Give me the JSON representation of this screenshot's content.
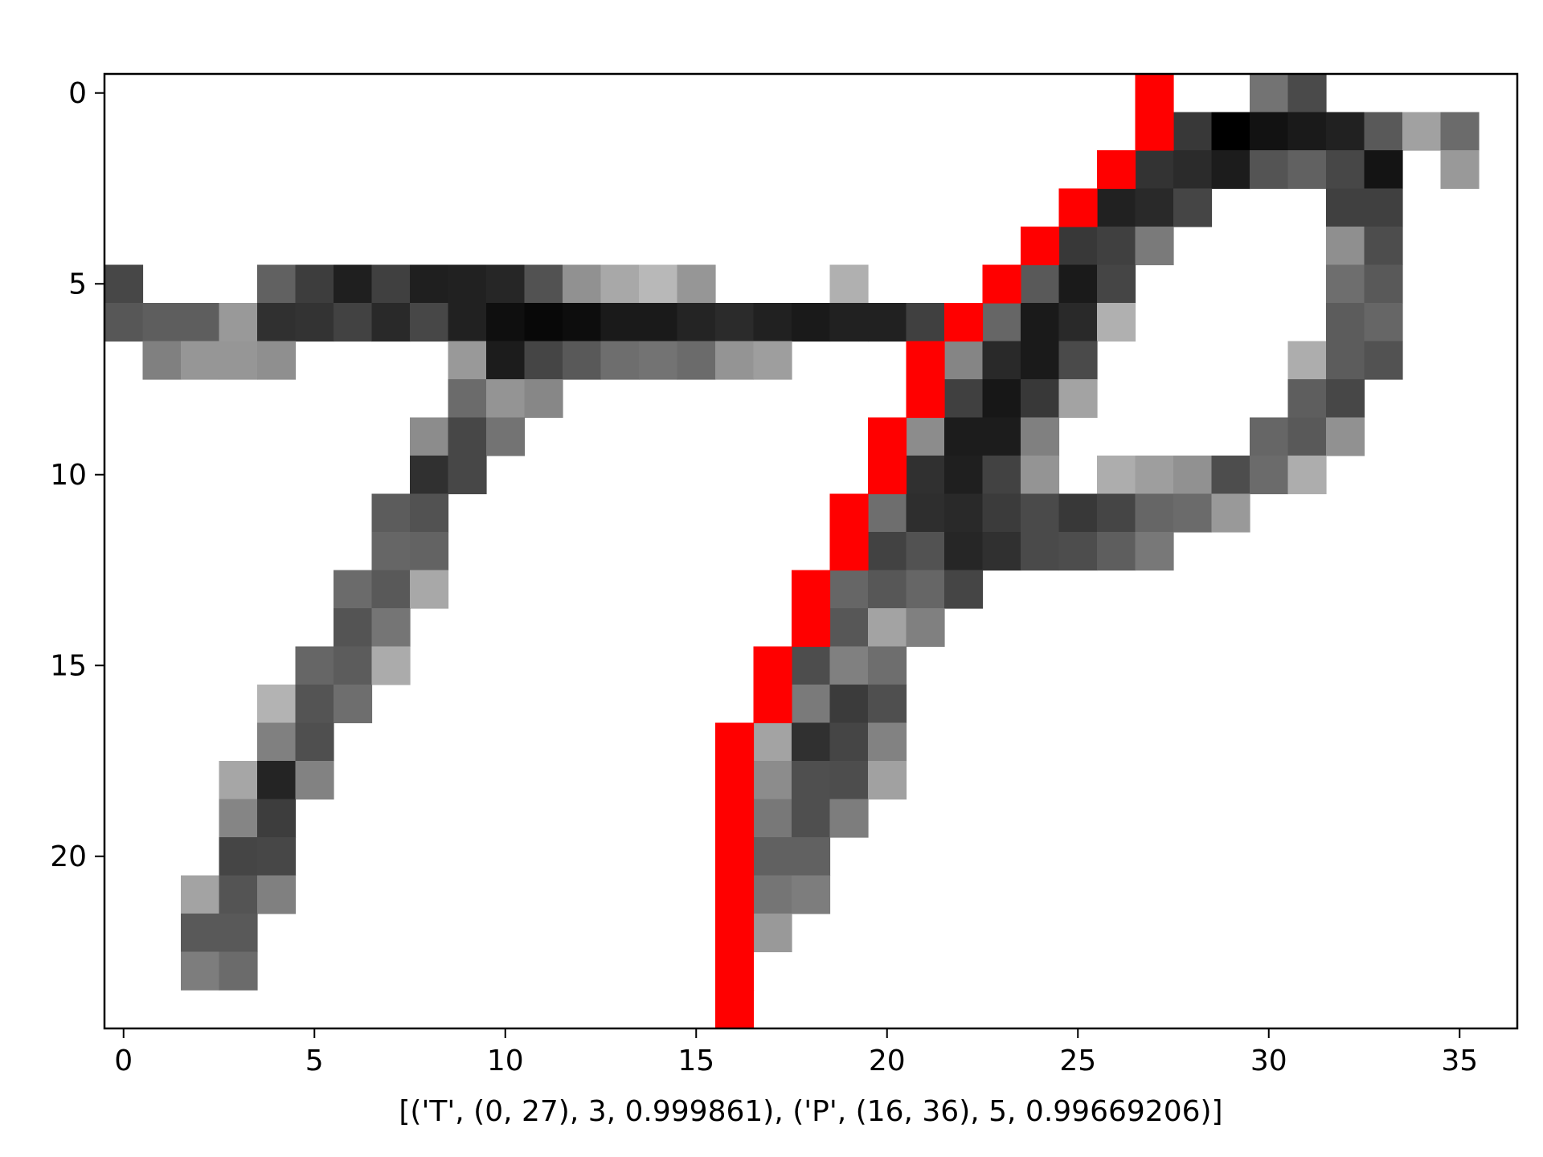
{
  "chart_data": {
    "type": "heatmap",
    "colormap": "gray",
    "highlight_color": "#ff0000",
    "xlabel": "[('T', (0, 27), 3, 0.999861), ('P', (16, 36), 5, 0.99669206)]",
    "xlim": [
      -0.5,
      36.5
    ],
    "ylim": [
      24.5,
      -0.5
    ],
    "x_ticks": [
      "0",
      "5",
      "10",
      "15",
      "20",
      "25",
      "30",
      "35"
    ],
    "y_ticks": [
      "0",
      "5",
      "10",
      "15",
      "20"
    ],
    "x_tick_values": [
      0,
      5,
      10,
      15,
      20,
      25,
      30,
      35
    ],
    "y_tick_values": [
      0,
      5,
      10,
      15,
      20
    ],
    "grid": false,
    "highlight_path": [
      [
        27,
        0
      ],
      [
        27,
        1
      ],
      [
        26,
        2
      ],
      [
        25,
        3
      ],
      [
        24,
        4
      ],
      [
        23,
        5
      ],
      [
        22,
        6
      ],
      [
        21,
        7
      ],
      [
        21,
        8
      ],
      [
        20,
        9
      ],
      [
        20,
        10
      ],
      [
        19,
        11
      ],
      [
        19,
        12
      ],
      [
        18,
        13
      ],
      [
        18,
        14
      ],
      [
        17,
        15
      ],
      [
        17,
        16
      ],
      [
        16,
        17
      ],
      [
        16,
        18
      ],
      [
        16,
        19
      ],
      [
        16,
        20
      ],
      [
        16,
        21
      ],
      [
        16,
        22
      ],
      [
        16,
        23
      ],
      [
        16,
        24
      ]
    ],
    "pixels": [
      {
        "row": 0,
        "cells": [
          [
            30,
            0.45
          ],
          [
            31,
            0.29
          ]
        ]
      },
      {
        "row": 1,
        "cells": [
          [
            28,
            0.22
          ],
          [
            29,
            0.0
          ],
          [
            30,
            0.07
          ],
          [
            31,
            0.1
          ],
          [
            32,
            0.13
          ],
          [
            33,
            0.35
          ],
          [
            34,
            0.63
          ],
          [
            35,
            0.42
          ]
        ]
      },
      {
        "row": 2,
        "cells": [
          [
            27,
            0.2
          ],
          [
            28,
            0.17
          ],
          [
            29,
            0.11
          ],
          [
            30,
            0.33
          ],
          [
            31,
            0.38
          ],
          [
            32,
            0.28
          ],
          [
            33,
            0.08
          ],
          [
            35,
            0.6
          ]
        ]
      },
      {
        "row": 3,
        "cells": [
          [
            26,
            0.13
          ],
          [
            27,
            0.16
          ],
          [
            28,
            0.27
          ],
          [
            32,
            0.25
          ],
          [
            33,
            0.25
          ]
        ]
      },
      {
        "row": 4,
        "cells": [
          [
            25,
            0.22
          ],
          [
            26,
            0.25
          ],
          [
            27,
            0.48
          ],
          [
            32,
            0.56
          ],
          [
            33,
            0.3
          ]
        ]
      },
      {
        "row": 5,
        "cells": [
          [
            0,
            0.28
          ],
          [
            4,
            0.38
          ],
          [
            5,
            0.24
          ],
          [
            6,
            0.12
          ],
          [
            7,
            0.25
          ],
          [
            8,
            0.12
          ],
          [
            9,
            0.13
          ],
          [
            10,
            0.15
          ],
          [
            11,
            0.32
          ],
          [
            12,
            0.57
          ],
          [
            13,
            0.66
          ],
          [
            14,
            0.72
          ],
          [
            15,
            0.59
          ],
          [
            19,
            0.69
          ],
          [
            24,
            0.35
          ],
          [
            25,
            0.1
          ],
          [
            26,
            0.27
          ],
          [
            32,
            0.43
          ],
          [
            33,
            0.35
          ]
        ]
      },
      {
        "row": 6,
        "cells": [
          [
            0,
            0.34
          ],
          [
            1,
            0.37
          ],
          [
            2,
            0.37
          ],
          [
            3,
            0.6
          ],
          [
            4,
            0.19
          ],
          [
            5,
            0.2
          ],
          [
            6,
            0.26
          ],
          [
            7,
            0.16
          ],
          [
            8,
            0.28
          ],
          [
            9,
            0.13
          ],
          [
            10,
            0.06
          ],
          [
            11,
            0.03
          ],
          [
            12,
            0.05
          ],
          [
            13,
            0.1
          ],
          [
            14,
            0.1
          ],
          [
            15,
            0.14
          ],
          [
            16,
            0.17
          ],
          [
            17,
            0.13
          ],
          [
            18,
            0.1
          ],
          [
            19,
            0.13
          ],
          [
            20,
            0.13
          ],
          [
            21,
            0.25
          ],
          [
            23,
            0.4
          ],
          [
            24,
            0.1
          ],
          [
            25,
            0.16
          ],
          [
            26,
            0.69
          ],
          [
            32,
            0.36
          ],
          [
            33,
            0.4
          ]
        ]
      },
      {
        "row": 7,
        "cells": [
          [
            1,
            0.5
          ],
          [
            2,
            0.59
          ],
          [
            3,
            0.59
          ],
          [
            4,
            0.56
          ],
          [
            9,
            0.6
          ],
          [
            10,
            0.11
          ],
          [
            11,
            0.27
          ],
          [
            12,
            0.35
          ],
          [
            13,
            0.43
          ],
          [
            14,
            0.45
          ],
          [
            15,
            0.42
          ],
          [
            16,
            0.58
          ],
          [
            17,
            0.62
          ],
          [
            22,
            0.52
          ],
          [
            23,
            0.16
          ],
          [
            24,
            0.1
          ],
          [
            25,
            0.29
          ],
          [
            31,
            0.68
          ],
          [
            32,
            0.36
          ],
          [
            33,
            0.32
          ]
        ]
      },
      {
        "row": 8,
        "cells": [
          [
            9,
            0.42
          ],
          [
            10,
            0.58
          ],
          [
            11,
            0.53
          ],
          [
            22,
            0.25
          ],
          [
            23,
            0.09
          ],
          [
            24,
            0.22
          ],
          [
            25,
            0.64
          ],
          [
            31,
            0.37
          ],
          [
            32,
            0.28
          ]
        ]
      },
      {
        "row": 9,
        "cells": [
          [
            8,
            0.55
          ],
          [
            9,
            0.28
          ],
          [
            10,
            0.45
          ],
          [
            21,
            0.55
          ],
          [
            22,
            0.11
          ],
          [
            23,
            0.11
          ],
          [
            24,
            0.5
          ],
          [
            30,
            0.4
          ],
          [
            31,
            0.35
          ],
          [
            32,
            0.57
          ]
        ]
      },
      {
        "row": 10,
        "cells": [
          [
            8,
            0.19
          ],
          [
            9,
            0.28
          ],
          [
            21,
            0.19
          ],
          [
            22,
            0.12
          ],
          [
            23,
            0.26
          ],
          [
            24,
            0.58
          ],
          [
            26,
            0.68
          ],
          [
            27,
            0.62
          ],
          [
            28,
            0.57
          ],
          [
            29,
            0.3
          ],
          [
            30,
            0.42
          ],
          [
            31,
            0.68
          ]
        ]
      },
      {
        "row": 11,
        "cells": [
          [
            7,
            0.36
          ],
          [
            8,
            0.32
          ],
          [
            20,
            0.43
          ],
          [
            21,
            0.18
          ],
          [
            22,
            0.16
          ],
          [
            23,
            0.23
          ],
          [
            24,
            0.29
          ],
          [
            25,
            0.22
          ],
          [
            26,
            0.27
          ],
          [
            27,
            0.4
          ],
          [
            28,
            0.42
          ],
          [
            29,
            0.6
          ]
        ]
      },
      {
        "row": 12,
        "cells": [
          [
            7,
            0.4
          ],
          [
            8,
            0.39
          ],
          [
            20,
            0.26
          ],
          [
            21,
            0.32
          ],
          [
            22,
            0.15
          ],
          [
            23,
            0.19
          ],
          [
            24,
            0.29
          ],
          [
            25,
            0.3
          ],
          [
            26,
            0.37
          ],
          [
            27,
            0.47
          ]
        ]
      },
      {
        "row": 13,
        "cells": [
          [
            6,
            0.42
          ],
          [
            7,
            0.35
          ],
          [
            8,
            0.66
          ],
          [
            19,
            0.4
          ],
          [
            20,
            0.34
          ],
          [
            21,
            0.4
          ],
          [
            22,
            0.27
          ]
        ]
      },
      {
        "row": 14,
        "cells": [
          [
            6,
            0.33
          ],
          [
            7,
            0.46
          ],
          [
            19,
            0.34
          ],
          [
            20,
            0.64
          ],
          [
            21,
            0.5
          ]
        ]
      },
      {
        "row": 15,
        "cells": [
          [
            5,
            0.4
          ],
          [
            6,
            0.36
          ],
          [
            7,
            0.67
          ],
          [
            18,
            0.3
          ],
          [
            19,
            0.5
          ],
          [
            20,
            0.43
          ]
        ]
      },
      {
        "row": 16,
        "cells": [
          [
            4,
            0.7
          ],
          [
            5,
            0.33
          ],
          [
            6,
            0.43
          ],
          [
            18,
            0.48
          ],
          [
            19,
            0.23
          ],
          [
            20,
            0.31
          ]
        ]
      },
      {
        "row": 17,
        "cells": [
          [
            4,
            0.5
          ],
          [
            5,
            0.31
          ],
          [
            17,
            0.64
          ],
          [
            18,
            0.19
          ],
          [
            19,
            0.27
          ],
          [
            20,
            0.51
          ]
        ]
      },
      {
        "row": 18,
        "cells": [
          [
            3,
            0.65
          ],
          [
            4,
            0.14
          ],
          [
            5,
            0.51
          ],
          [
            17,
            0.55
          ],
          [
            18,
            0.31
          ],
          [
            19,
            0.3
          ],
          [
            20,
            0.63
          ]
        ]
      },
      {
        "row": 19,
        "cells": [
          [
            3,
            0.52
          ],
          [
            4,
            0.24
          ],
          [
            17,
            0.47
          ],
          [
            18,
            0.31
          ],
          [
            19,
            0.49
          ]
        ]
      },
      {
        "row": 20,
        "cells": [
          [
            3,
            0.27
          ],
          [
            4,
            0.28
          ],
          [
            17,
            0.38
          ],
          [
            18,
            0.38
          ]
        ]
      },
      {
        "row": 21,
        "cells": [
          [
            2,
            0.64
          ],
          [
            3,
            0.33
          ],
          [
            4,
            0.5
          ],
          [
            17,
            0.46
          ],
          [
            18,
            0.49
          ]
        ]
      },
      {
        "row": 22,
        "cells": [
          [
            2,
            0.35
          ],
          [
            3,
            0.35
          ],
          [
            17,
            0.6
          ]
        ]
      },
      {
        "row": 23,
        "cells": [
          [
            2,
            0.49
          ],
          [
            3,
            0.42
          ]
        ]
      }
    ]
  }
}
